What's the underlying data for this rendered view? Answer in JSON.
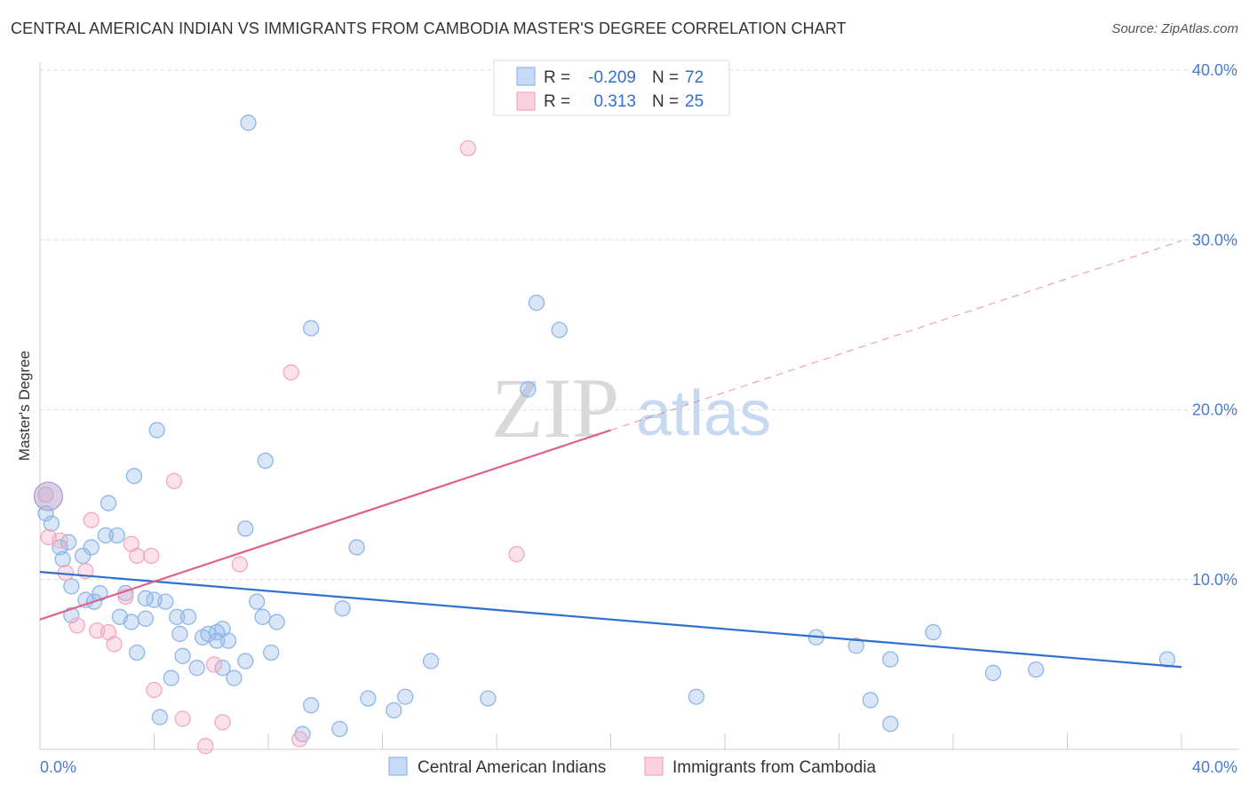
{
  "title": "CENTRAL AMERICAN INDIAN VS IMMIGRANTS FROM CAMBODIA MASTER'S DEGREE CORRELATION CHART",
  "source": "Source: ZipAtlas.com",
  "watermark": {
    "zip": "ZIP",
    "atlas": "atlas"
  },
  "chart_data": {
    "type": "scatter",
    "xlabel": "",
    "ylabel": "Master's Degree",
    "xlim": [
      0,
      0.4
    ],
    "ylim": [
      0,
      0.4
    ],
    "x_tick_labels": [
      {
        "value": 0.0,
        "label": "0.0%"
      },
      {
        "value": 0.4,
        "label": "40.0%"
      }
    ],
    "y_tick_labels": [
      {
        "value": 0.1,
        "label": "10.0%"
      },
      {
        "value": 0.2,
        "label": "20.0%"
      },
      {
        "value": 0.3,
        "label": "30.0%"
      },
      {
        "value": 0.4,
        "label": "40.0%"
      }
    ],
    "legend": [
      {
        "series": "Central American Indians",
        "r_label": "R =",
        "r_value": "-0.209",
        "n_label": "N =",
        "n_value": "72"
      },
      {
        "series": "Immigrants from Cambodia",
        "r_label": "R =",
        "r_value": "0.313",
        "n_label": "N =",
        "n_value": "25"
      }
    ],
    "series": [
      {
        "name": "Central American Indians",
        "color": "#8fb6e8",
        "line_color": "#2e6fcf",
        "trend": {
          "x0": 0.0,
          "y0": 0.1045,
          "x1": 0.4,
          "y1": 0.0485,
          "dashed_from": null
        },
        "points": [
          [
            0.073,
            0.369
          ],
          [
            0.095,
            0.248
          ],
          [
            0.174,
            0.263
          ],
          [
            0.182,
            0.247
          ],
          [
            0.171,
            0.212
          ],
          [
            0.041,
            0.188
          ],
          [
            0.079,
            0.17
          ],
          [
            0.033,
            0.161
          ],
          [
            0.024,
            0.145
          ],
          [
            0.002,
            0.139
          ],
          [
            0.004,
            0.133
          ],
          [
            0.023,
            0.126
          ],
          [
            0.027,
            0.126
          ],
          [
            0.072,
            0.13
          ],
          [
            0.111,
            0.119
          ],
          [
            0.01,
            0.122
          ],
          [
            0.007,
            0.119
          ],
          [
            0.018,
            0.119
          ],
          [
            0.008,
            0.112
          ],
          [
            0.015,
            0.114
          ],
          [
            0.011,
            0.096
          ],
          [
            0.021,
            0.092
          ],
          [
            0.03,
            0.092
          ],
          [
            0.016,
            0.088
          ],
          [
            0.019,
            0.087
          ],
          [
            0.037,
            0.089
          ],
          [
            0.04,
            0.088
          ],
          [
            0.044,
            0.087
          ],
          [
            0.076,
            0.087
          ],
          [
            0.106,
            0.083
          ],
          [
            0.011,
            0.079
          ],
          [
            0.028,
            0.078
          ],
          [
            0.032,
            0.075
          ],
          [
            0.037,
            0.077
          ],
          [
            0.048,
            0.078
          ],
          [
            0.052,
            0.078
          ],
          [
            0.078,
            0.078
          ],
          [
            0.083,
            0.075
          ],
          [
            0.049,
            0.068
          ],
          [
            0.057,
            0.066
          ],
          [
            0.062,
            0.064
          ],
          [
            0.059,
            0.068
          ],
          [
            0.066,
            0.064
          ],
          [
            0.062,
            0.069
          ],
          [
            0.064,
            0.071
          ],
          [
            0.034,
            0.057
          ],
          [
            0.05,
            0.055
          ],
          [
            0.055,
            0.048
          ],
          [
            0.064,
            0.048
          ],
          [
            0.072,
            0.052
          ],
          [
            0.081,
            0.057
          ],
          [
            0.137,
            0.052
          ],
          [
            0.046,
            0.042
          ],
          [
            0.068,
            0.042
          ],
          [
            0.095,
            0.026
          ],
          [
            0.115,
            0.03
          ],
          [
            0.128,
            0.031
          ],
          [
            0.124,
            0.023
          ],
          [
            0.157,
            0.03
          ],
          [
            0.042,
            0.019
          ],
          [
            0.092,
            0.009
          ],
          [
            0.105,
            0.012
          ],
          [
            0.23,
            0.031
          ],
          [
            0.272,
            0.066
          ],
          [
            0.286,
            0.061
          ],
          [
            0.298,
            0.053
          ],
          [
            0.313,
            0.069
          ],
          [
            0.334,
            0.045
          ],
          [
            0.349,
            0.047
          ],
          [
            0.291,
            0.029
          ],
          [
            0.298,
            0.015
          ],
          [
            0.395,
            0.053
          ]
        ]
      },
      {
        "name": "Immigrants from Cambodia",
        "color": "#f4a8c0",
        "line_color": "#e0608a",
        "trend": {
          "x0": 0.0,
          "y0": 0.0765,
          "x1": 0.4,
          "y1": 0.2995,
          "dashed_from": 0.2
        },
        "points": [
          [
            0.15,
            0.354
          ],
          [
            0.088,
            0.222
          ],
          [
            0.047,
            0.158
          ],
          [
            0.002,
            0.15
          ],
          [
            0.018,
            0.135
          ],
          [
            0.003,
            0.125
          ],
          [
            0.007,
            0.123
          ],
          [
            0.032,
            0.121
          ],
          [
            0.034,
            0.114
          ],
          [
            0.039,
            0.114
          ],
          [
            0.07,
            0.109
          ],
          [
            0.009,
            0.104
          ],
          [
            0.016,
            0.105
          ],
          [
            0.167,
            0.115
          ],
          [
            0.03,
            0.09
          ],
          [
            0.013,
            0.073
          ],
          [
            0.02,
            0.07
          ],
          [
            0.024,
            0.069
          ],
          [
            0.026,
            0.062
          ],
          [
            0.061,
            0.05
          ],
          [
            0.04,
            0.035
          ],
          [
            0.05,
            0.018
          ],
          [
            0.064,
            0.016
          ],
          [
            0.058,
            0.002
          ],
          [
            0.091,
            0.006
          ]
        ]
      }
    ],
    "highlight_point": {
      "x": 0.002,
      "y": 0.149,
      "series": "mixed"
    }
  }
}
